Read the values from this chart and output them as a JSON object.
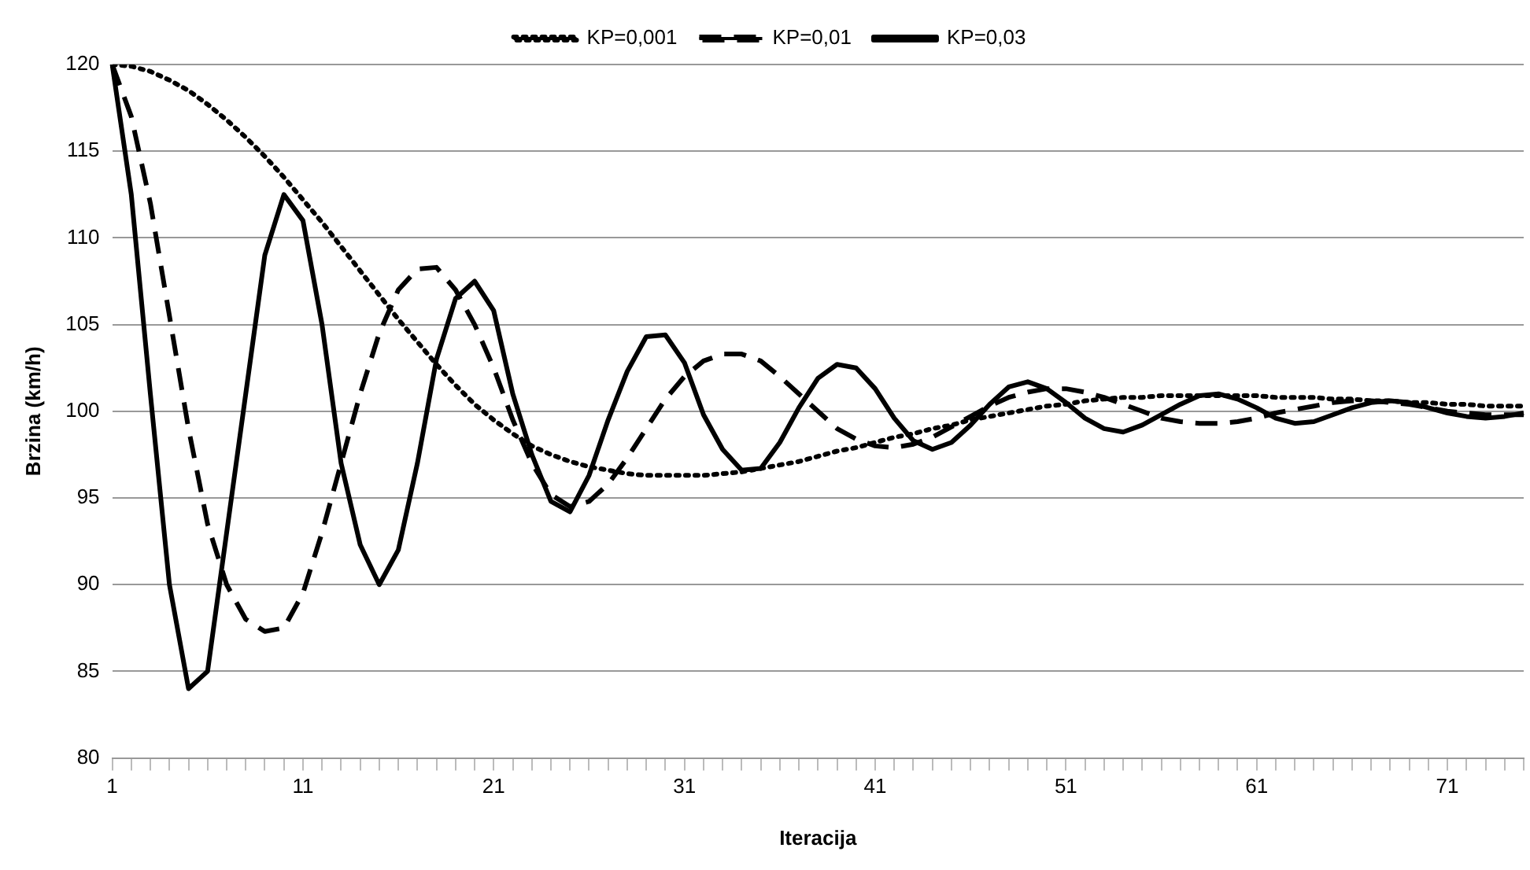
{
  "chart_data": {
    "type": "line",
    "xlabel": "Iteracija",
    "ylabel": "Brzina (km/h)",
    "categories": [
      "1",
      null,
      null,
      null,
      null,
      null,
      null,
      null,
      null,
      null,
      "11",
      null,
      null,
      null,
      null,
      null,
      null,
      null,
      null,
      null,
      "21",
      null,
      null,
      null,
      null,
      null,
      null,
      null,
      null,
      null,
      "31",
      null,
      null,
      null,
      null,
      null,
      null,
      null,
      null,
      null,
      "41",
      null,
      null,
      null,
      null,
      null,
      null,
      null,
      null,
      null,
      "51",
      null,
      null,
      null,
      null,
      null,
      null,
      null,
      null,
      null,
      "61",
      null,
      null,
      null,
      null,
      null,
      null,
      null,
      null,
      null,
      "71",
      null,
      null,
      null,
      null
    ],
    "ylim": [
      80,
      120
    ],
    "yticks": [
      80,
      85,
      90,
      95,
      100,
      105,
      110,
      115,
      120
    ],
    "grid": "y",
    "legend": "top",
    "marker": "none",
    "series": [
      {
        "name": "KP=0,001",
        "color": "#000000",
        "line_style": "dotted",
        "values": [
          120,
          119.9,
          119.6,
          119.1,
          118.5,
          117.7,
          116.8,
          115.8,
          114.7,
          113.5,
          112.2,
          110.9,
          109.5,
          108.1,
          106.7,
          105.3,
          104,
          102.7,
          101.5,
          100.4,
          99.5,
          98.7,
          98,
          97.5,
          97.1,
          96.8,
          96.6,
          96.4,
          96.3,
          96.3,
          96.3,
          96.3,
          96.4,
          96.5,
          96.7,
          96.9,
          97.1,
          97.4,
          97.7,
          97.9,
          98.2,
          98.5,
          98.7,
          99,
          99.2,
          99.5,
          99.7,
          99.9,
          100.1,
          100.3,
          100.4,
          100.6,
          100.7,
          100.8,
          100.8,
          100.9,
          100.9,
          100.9,
          100.9,
          100.9,
          100.9,
          100.8,
          100.8,
          100.8,
          100.7,
          100.7,
          100.6,
          100.6,
          100.5,
          100.5,
          100.4,
          100.4,
          100.3,
          100.3,
          100.3
        ]
      },
      {
        "name": "KP=0,01",
        "color": "#000000",
        "line_style": "dashed",
        "values": [
          120,
          117,
          112,
          105.5,
          99,
          93.5,
          90,
          88,
          87.3,
          87.5,
          89.5,
          93,
          97,
          101,
          104.5,
          107,
          108.2,
          108.3,
          107,
          105,
          102.5,
          99.5,
          97,
          95.2,
          94.5,
          94.8,
          95.8,
          97.3,
          99,
          100.7,
          102,
          102.9,
          103.3,
          103.3,
          102.9,
          102,
          101,
          100,
          99,
          98.4,
          98,
          97.9,
          98.1,
          98.5,
          99.1,
          99.7,
          100.3,
          100.8,
          101.1,
          101.3,
          101.3,
          101.1,
          100.8,
          100.4,
          100,
          99.6,
          99.4,
          99.3,
          99.3,
          99.4,
          99.6,
          99.9,
          100.1,
          100.3,
          100.5,
          100.6,
          100.6,
          100.5,
          100.4,
          100.2,
          100,
          99.9,
          99.8,
          99.8,
          99.8
        ]
      },
      {
        "name": "KP=0,03",
        "color": "#000000",
        "line_style": "solid",
        "values": [
          120,
          112.5,
          101,
          90,
          84,
          85,
          93,
          101,
          109,
          112.5,
          111,
          105,
          97,
          92.3,
          90,
          92,
          97,
          103,
          106.5,
          107.5,
          105.8,
          101,
          97.5,
          94.8,
          94.2,
          96.3,
          99.5,
          102.3,
          104.3,
          104.4,
          102.8,
          99.8,
          97.8,
          96.6,
          96.7,
          98.2,
          100.2,
          101.9,
          102.7,
          102.5,
          101.3,
          99.6,
          98.3,
          97.8,
          98.2,
          99.2,
          100.4,
          101.4,
          101.7,
          101.3,
          100.5,
          99.6,
          99,
          98.8,
          99.2,
          99.8,
          100.4,
          100.9,
          101,
          100.7,
          100.2,
          99.6,
          99.3,
          99.4,
          99.8,
          100.2,
          100.5,
          100.6,
          100.5,
          100.2,
          99.9,
          99.7,
          99.6,
          99.7,
          99.9
        ]
      }
    ]
  }
}
